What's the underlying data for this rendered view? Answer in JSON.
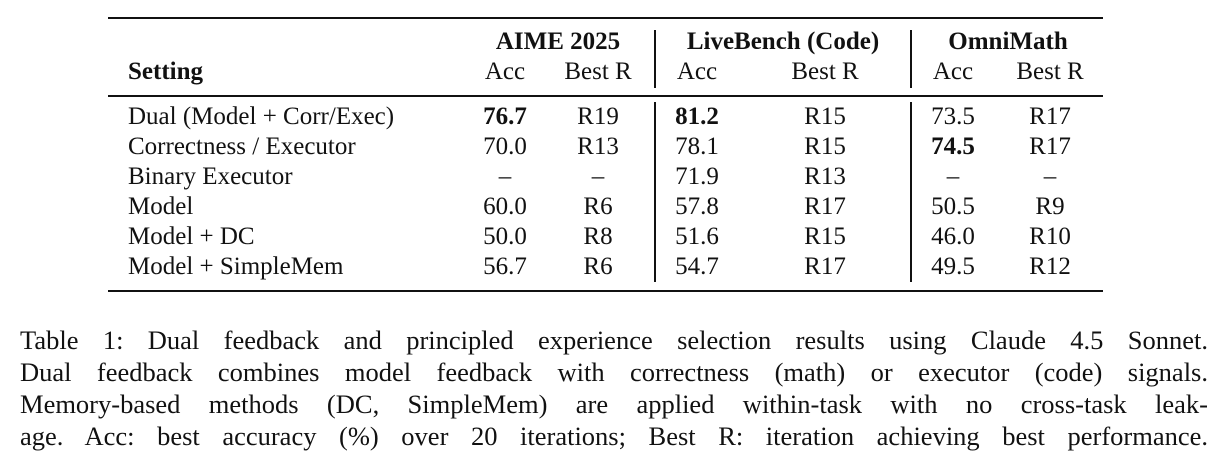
{
  "table": {
    "setting_header": "Setting",
    "groups": [
      {
        "name": "AIME 2025",
        "columns": [
          "Acc",
          "Best R"
        ]
      },
      {
        "name": "LiveBench (Code)",
        "columns": [
          "Acc",
          "Best R"
        ]
      },
      {
        "name": "OmniMath",
        "columns": [
          "Acc",
          "Best R"
        ]
      }
    ],
    "rows": [
      {
        "setting": "Dual (Model + Corr/Exec)",
        "cells": [
          "76.7",
          "R19",
          "81.2",
          "R15",
          "73.5",
          "R17"
        ]
      },
      {
        "setting": "Correctness / Executor",
        "cells": [
          "70.0",
          "R13",
          "78.1",
          "R15",
          "74.5",
          "R17"
        ]
      },
      {
        "setting": "Binary Executor",
        "cells": [
          "–",
          "–",
          "71.9",
          "R13",
          "–",
          "–"
        ]
      },
      {
        "setting": "Model",
        "cells": [
          "60.0",
          "R6",
          "57.8",
          "R17",
          "50.5",
          "R9"
        ]
      },
      {
        "setting": "Model + DC",
        "cells": [
          "50.0",
          "R8",
          "51.6",
          "R15",
          "46.0",
          "R10"
        ]
      },
      {
        "setting": "Model + SimpleMem",
        "cells": [
          "56.7",
          "R6",
          "54.7",
          "R17",
          "49.5",
          "R12"
        ]
      }
    ]
  },
  "caption": {
    "lines": [
      "Table 1: Dual feedback and principled experience selection results using Claude 4.5 Sonnet.",
      "Dual feedback combines model feedback with correctness (math) or executor (code) signals.",
      "Memory-based methods (DC, SimpleMem) are applied within-task with no cross-task leak-",
      "age. Acc: best accuracy (%) over 20 iterations; Best R: iteration achieving best performance."
    ]
  }
}
